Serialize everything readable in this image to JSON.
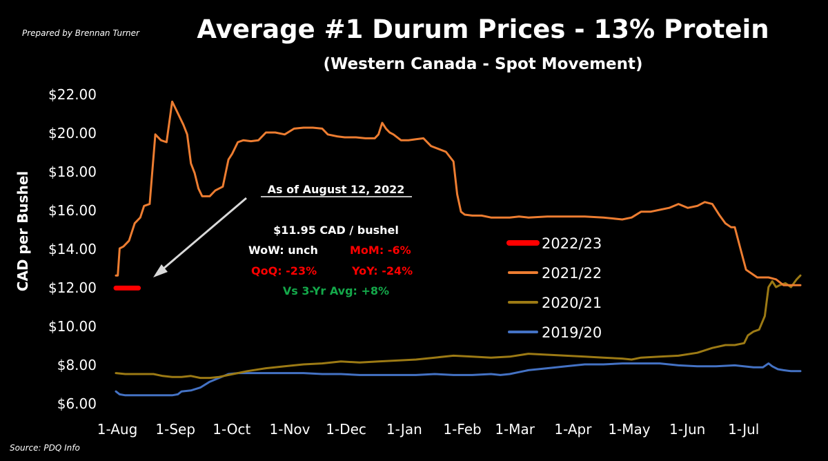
{
  "header": {
    "prepared_by": "Prepared by Brennan Turner",
    "title": "Average #1 Durum Prices - 13% Protein",
    "subtitle": "(Western Canada - Spot Movement)",
    "source": "Source: PDQ Info"
  },
  "colors": {
    "s2022": "#ff0000",
    "s2021": "#ed7d31",
    "s2020": "#9c7a14",
    "s2019": "#4472c4",
    "green": "#14a84a",
    "red": "#ff0000"
  },
  "annotation": {
    "as_of": "As of August 12, 2022",
    "price": "$11.95 CAD / bushel",
    "wow": "WoW: unch",
    "mom": "MoM: -6%",
    "qoq": "QoQ: -23%",
    "yoy": "YoY: -24%",
    "vs3yr": "Vs 3-Yr Avg: +8%"
  },
  "chart_data": {
    "type": "line",
    "ylabel": "CAD per Bushel",
    "xlabel": "",
    "ylim": [
      6,
      22
    ],
    "x_range_days": [
      0,
      365
    ],
    "y_ticks": [
      "$6.00",
      "$8.00",
      "$10.00",
      "$12.00",
      "$14.00",
      "$16.00",
      "$18.00",
      "$20.00",
      "$22.00"
    ],
    "x_ticks": [
      {
        "label": "1-Aug",
        "day": 0
      },
      {
        "label": "1-Sep",
        "day": 31
      },
      {
        "label": "1-Oct",
        "day": 61
      },
      {
        "label": "1-Nov",
        "day": 92
      },
      {
        "label": "1-Dec",
        "day": 122
      },
      {
        "label": "1-Jan",
        "day": 153
      },
      {
        "label": "1-Feb",
        "day": 184
      },
      {
        "label": "1-Mar",
        "day": 212
      },
      {
        "label": "1-Apr",
        "day": 243
      },
      {
        "label": "1-May",
        "day": 273
      },
      {
        "label": "1-Jun",
        "day": 304
      },
      {
        "label": "1-Jul",
        "day": 334
      }
    ],
    "legend_position": "center-right",
    "series": [
      {
        "name": "2022/23",
        "color_key": "s2022",
        "x": [
          0,
          3,
          6,
          9,
          12
        ],
        "y": [
          11.95,
          11.95,
          11.95,
          11.95,
          11.95
        ]
      },
      {
        "name": "2021/22",
        "color_key": "s2021",
        "x": [
          0,
          1,
          2,
          4,
          7,
          10,
          13,
          15,
          18,
          21,
          24,
          27,
          30,
          32,
          34,
          36,
          38,
          40,
          42,
          44,
          46,
          48,
          50,
          53,
          55,
          57,
          60,
          62,
          65,
          68,
          72,
          76,
          80,
          85,
          90,
          95,
          100,
          105,
          110,
          113,
          118,
          122,
          128,
          133,
          138,
          140,
          142,
          144,
          146,
          148,
          152,
          156,
          160,
          164,
          168,
          172,
          176,
          180,
          182,
          184,
          186,
          190,
          195,
          200,
          205,
          210,
          215,
          220,
          230,
          240,
          250,
          260,
          270,
          275,
          280,
          285,
          290,
          295,
          300,
          305,
          310,
          314,
          318,
          322,
          325,
          328,
          330,
          333,
          336,
          339,
          342,
          345,
          348,
          352,
          356,
          360,
          365
        ],
        "y": [
          12.6,
          12.6,
          14.0,
          14.1,
          14.4,
          15.3,
          15.6,
          16.2,
          16.3,
          19.9,
          19.6,
          19.5,
          21.6,
          21.2,
          20.8,
          20.4,
          19.9,
          18.4,
          17.9,
          17.1,
          16.7,
          16.7,
          16.7,
          17.0,
          17.1,
          17.2,
          18.6,
          18.9,
          19.5,
          19.6,
          19.55,
          19.6,
          20.0,
          20.0,
          19.9,
          20.2,
          20.25,
          20.25,
          20.2,
          19.9,
          19.8,
          19.75,
          19.75,
          19.7,
          19.7,
          19.9,
          20.5,
          20.2,
          20.0,
          19.9,
          19.6,
          19.6,
          19.65,
          19.7,
          19.3,
          19.15,
          19.0,
          18.5,
          16.8,
          15.9,
          15.75,
          15.7,
          15.7,
          15.6,
          15.6,
          15.6,
          15.65,
          15.6,
          15.65,
          15.65,
          15.65,
          15.6,
          15.5,
          15.6,
          15.9,
          15.9,
          16.0,
          16.1,
          16.3,
          16.1,
          16.2,
          16.4,
          16.3,
          15.7,
          15.3,
          15.1,
          15.1,
          14.0,
          12.9,
          12.7,
          12.5,
          12.5,
          12.5,
          12.4,
          12.1,
          12.1,
          12.1
        ]
      },
      {
        "name": "2020/21",
        "color_key": "s2020",
        "x": [
          0,
          5,
          10,
          15,
          20,
          25,
          30,
          35,
          40,
          45,
          50,
          55,
          60,
          65,
          70,
          80,
          90,
          100,
          110,
          120,
          130,
          140,
          150,
          160,
          170,
          180,
          190,
          200,
          210,
          220,
          230,
          240,
          250,
          260,
          270,
          275,
          280,
          290,
          300,
          310,
          318,
          325,
          330,
          335,
          337,
          340,
          343,
          346,
          348,
          350,
          352,
          354,
          357,
          360,
          363,
          365
        ],
        "y": [
          7.55,
          7.5,
          7.5,
          7.5,
          7.5,
          7.4,
          7.35,
          7.35,
          7.4,
          7.3,
          7.3,
          7.35,
          7.45,
          7.55,
          7.65,
          7.8,
          7.9,
          8.0,
          8.05,
          8.15,
          8.1,
          8.15,
          8.2,
          8.25,
          8.35,
          8.45,
          8.4,
          8.35,
          8.4,
          8.55,
          8.5,
          8.45,
          8.4,
          8.35,
          8.3,
          8.25,
          8.35,
          8.4,
          8.45,
          8.6,
          8.85,
          9.0,
          9.0,
          9.1,
          9.5,
          9.7,
          9.8,
          10.5,
          12.0,
          12.3,
          12.0,
          12.1,
          12.2,
          12.0,
          12.4,
          12.6
        ]
      },
      {
        "name": "2019/20",
        "color_key": "s2019",
        "x": [
          0,
          2,
          5,
          10,
          15,
          20,
          25,
          30,
          33,
          35,
          40,
          45,
          50,
          55,
          60,
          65,
          70,
          80,
          90,
          100,
          110,
          120,
          130,
          140,
          150,
          160,
          170,
          180,
          190,
          200,
          205,
          210,
          215,
          220,
          230,
          240,
          250,
          260,
          270,
          280,
          290,
          300,
          310,
          320,
          330,
          340,
          345,
          348,
          350,
          353,
          356,
          360,
          365
        ],
        "y": [
          6.6,
          6.45,
          6.4,
          6.4,
          6.4,
          6.4,
          6.4,
          6.4,
          6.45,
          6.6,
          6.65,
          6.8,
          7.1,
          7.3,
          7.5,
          7.55,
          7.55,
          7.55,
          7.55,
          7.55,
          7.5,
          7.5,
          7.45,
          7.45,
          7.45,
          7.45,
          7.5,
          7.45,
          7.45,
          7.5,
          7.45,
          7.5,
          7.6,
          7.7,
          7.8,
          7.9,
          8.0,
          8.0,
          8.05,
          8.05,
          8.05,
          7.95,
          7.9,
          7.9,
          7.95,
          7.85,
          7.85,
          8.05,
          7.9,
          7.75,
          7.7,
          7.65,
          7.65
        ]
      }
    ]
  }
}
